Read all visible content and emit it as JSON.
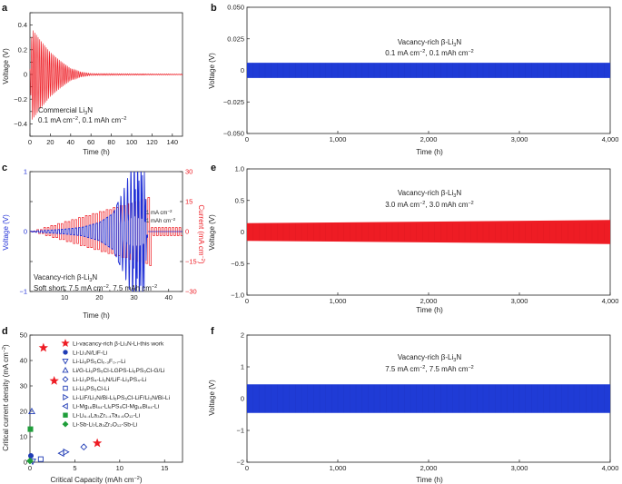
{
  "colors": {
    "red": "#ee1c24",
    "blue": "#1f2fd6",
    "axis": "#222222",
    "green": "#1f9e3a",
    "navy": "#1f3bb5"
  },
  "panels": {
    "a": {
      "label": "a",
      "xlabel": "Time (h)",
      "ylabel": "Voltage (V)",
      "ann_line1": "Commercial Li",
      "ann_line1_sub": "3",
      "ann_line1_end": "N",
      "ann_line2": "0.1 mA cm",
      "ann_line2_sup": "−2",
      "ann_line2_mid": ", 0.1 mAh cm",
      "ann_line2_sup2": "−2"
    },
    "b": {
      "label": "b",
      "xlabel": "Time (h)",
      "ylabel": "Voltage (V)",
      "ann_line1": "Vacancy-rich β-Li",
      "ann_line1_sub": "3",
      "ann_line1_end": "N",
      "ann_line2": "0.1 mA cm",
      "ann_line2_sup": "−2",
      "ann_line2_mid": ", 0.1 mAh cm",
      "ann_line2_sup2": "−2"
    },
    "c": {
      "label": "c",
      "xlabel": "Time (h)",
      "ylabel": "Voltage (V)",
      "ylabel_right": "Current (mA cm",
      "ylabel_right_sup": "−2",
      "ylabel_right_end": ")",
      "ann_line1": "Vacancy-rich β-Li",
      "ann_line1_sub": "3",
      "ann_line1_end": "N",
      "ann_line2": "Soft short: 7.5 mA cm",
      "ann_line2_sup": "−2",
      "ann_line2_mid": ", 7.5 mAh cm",
      "ann_line2_sup2": "−2",
      "small1": "1 mA cm",
      "small1_sup": "−2",
      "small2": "1 mAh cm",
      "small2_sup": "−2"
    },
    "d": {
      "label": "d",
      "xlabel": "Critical Capacity (mAh cm",
      "xlabel_sup": "−2",
      "xlabel_end": ")",
      "ylabel": "Critical current density (mA cm",
      "ylabel_sup": "−2",
      "ylabel_end": ")"
    },
    "e": {
      "label": "e",
      "xlabel": "Time (h)",
      "ylabel": "Voltage (V)",
      "ann_line1": "Vacancy-rich β-Li",
      "ann_line1_sub": "3",
      "ann_line1_end": "N",
      "ann_line2": "3.0 mA cm",
      "ann_line2_sup": "−2",
      "ann_line2_mid": ", 3.0 mAh cm",
      "ann_line2_sup2": "−2"
    },
    "f": {
      "label": "f",
      "xlabel": "Time (h)",
      "ylabel": "Voltage (V)",
      "ann_line1": "Vacancy-rich β-Li",
      "ann_line1_sub": "3",
      "ann_line1_end": "N",
      "ann_line2": "7.5 mA cm",
      "ann_line2_sup": "−2",
      "ann_line2_mid": ", 7.5 mAh cm",
      "ann_line2_sup2": "−2"
    }
  },
  "legend_d": [
    {
      "text": "Li-vacancy-rich β-Li₃N-Li-this work",
      "marker": "star",
      "color": "#ee1c24"
    },
    {
      "text": "Li-Li₃N/LiF-Li",
      "marker": "circle",
      "color": "#1f3bb5"
    },
    {
      "text": "Li-Li₆PS₅Cl₀.₃F₀.₇-Li",
      "marker": "tri-down",
      "color": "#1f3bb5"
    },
    {
      "text": "Li/G-Li₆PS₅Cl-LGPS-Li₆PS₅Cl-G/Li",
      "marker": "tri-up",
      "color": "#1f3bb5"
    },
    {
      "text": "Li-Li₃PS₄-Li₃N/LiF-Li₃PS₄-Li",
      "marker": "diamond",
      "color": "#1f3bb5"
    },
    {
      "text": "Li-Li₆PS₅Cl-Li",
      "marker": "square",
      "color": "#1f3bb5"
    },
    {
      "text": "Li-LiF/Li₃N/Bi-Li₆PS₅Cl-LiF/Li₃N/Bi-Li",
      "marker": "tri-right",
      "color": "#1f3bb5"
    },
    {
      "text": "Li-Mg₁₆Bi₈₄-Li₆PS₅Cl-Mg₁₆Bi₈₄-Li",
      "marker": "tri-left",
      "color": "#1f3bb5"
    },
    {
      "text": "Li-Li₆.₄La₃Zr₁.₄Ta₀.₆O₁₂-Li",
      "marker": "sq-filled",
      "color": "#1f9e3a"
    },
    {
      "text": "Li-Sb-Li₇La₃Zr₂O₁₂-Sb-Li",
      "marker": "diam-filled",
      "color": "#1f9e3a"
    }
  ],
  "chart_data": [
    {
      "panel": "a",
      "type": "line",
      "x_range": [
        0,
        150
      ],
      "ylim": [
        -0.5,
        0.5
      ],
      "xticks": [
        0,
        20,
        40,
        60,
        80,
        100,
        120,
        140
      ],
      "yticks": [
        -0.5,
        -0.4,
        -0.3,
        -0.2,
        -0.1,
        0,
        0.1,
        0.2,
        0.3,
        0.4,
        0.5
      ],
      "ytick_labels": [
        "",
        "−0.4",
        "",
        "−0.2",
        "",
        "0",
        "",
        "0.2",
        "",
        "0.4",
        ""
      ],
      "xtick_labels": [
        "0",
        "20",
        "40",
        "60",
        "80",
        "100",
        "120",
        "140"
      ],
      "envelope": [
        {
          "x": 0,
          "amp": 0.03
        },
        {
          "x": 2,
          "amp": 0.37
        },
        {
          "x": 10,
          "amp": 0.28
        },
        {
          "x": 20,
          "amp": 0.18
        },
        {
          "x": 30,
          "amp": 0.11
        },
        {
          "x": 40,
          "amp": 0.05
        },
        {
          "x": 50,
          "amp": 0.02
        },
        {
          "x": 60,
          "amp": 0.008
        },
        {
          "x": 150,
          "amp": 0.004
        }
      ]
    },
    {
      "panel": "b",
      "type": "line",
      "x_range": [
        0,
        4000
      ],
      "ylim": [
        -0.05,
        0.05
      ],
      "xticks": [
        0,
        1000,
        2000,
        3000,
        4000
      ],
      "xtick_labels": [
        "0",
        "1,000",
        "2,000",
        "3,000",
        "4,000"
      ],
      "yticks": [
        -0.05,
        -0.025,
        0,
        0.025,
        0.05
      ],
      "ytick_labels": [
        "−0.050",
        "−0.025",
        "0",
        "0.025",
        "0.050"
      ],
      "band": {
        "from": 0,
        "to": 4000,
        "amp": 0.006
      }
    },
    {
      "panel": "c",
      "type": "line",
      "x_range": [
        0,
        44
      ],
      "ylim": [
        -1,
        1
      ],
      "y2lim": [
        -30,
        30
      ],
      "xticks": [
        10,
        20,
        30,
        40
      ],
      "xtick_labels": [
        "10",
        "20",
        "30",
        "40"
      ],
      "yticks": [
        -1,
        -0.5,
        0,
        0.5,
        1
      ],
      "ytick_labels": [
        "−1",
        "",
        "0",
        "",
        "1"
      ],
      "y2ticks": [
        -30,
        -15,
        0,
        15,
        30
      ],
      "y2tick_labels": [
        "−30",
        "−15",
        "0",
        "15",
        "30"
      ],
      "voltage_envelope": [
        {
          "x": 0,
          "amp": 0.005
        },
        {
          "x": 5,
          "amp": 0.02
        },
        {
          "x": 10,
          "amp": 0.04
        },
        {
          "x": 15,
          "amp": 0.07
        },
        {
          "x": 20,
          "amp": 0.15
        },
        {
          "x": 24,
          "amp": 0.3
        },
        {
          "x": 27,
          "amp": 0.7
        },
        {
          "x": 30,
          "amp": 1.2
        },
        {
          "x": 33,
          "amp": 1.0
        },
        {
          "x": 34,
          "amp": 0.0
        }
      ],
      "current_steps": [
        0,
        0,
        1,
        1,
        2,
        2,
        3,
        3,
        4,
        4,
        5,
        5,
        6,
        6,
        7,
        7,
        8,
        8,
        9,
        9,
        10,
        10,
        11,
        11,
        12,
        12,
        13,
        13,
        14,
        14,
        15,
        15,
        16,
        16,
        17,
        2,
        2,
        2,
        2,
        2,
        2,
        2,
        2,
        2
      ]
    },
    {
      "panel": "d",
      "type": "scatter",
      "xlim": [
        0,
        17
      ],
      "ylim": [
        0,
        50
      ],
      "xticks": [
        0,
        5,
        10,
        15
      ],
      "xtick_labels": [
        "0",
        "5",
        "10",
        "15"
      ],
      "yticks": [
        0,
        10,
        20,
        30,
        40,
        50
      ],
      "ytick_labels": [
        "0",
        "10",
        "20",
        "30",
        "40",
        "50"
      ],
      "points": [
        {
          "series": 0,
          "x": 1.5,
          "y": 45
        },
        {
          "series": 0,
          "x": 2.7,
          "y": 32
        },
        {
          "series": 0,
          "x": 7.5,
          "y": 7.5
        },
        {
          "series": 1,
          "x": 0.1,
          "y": 2.5
        },
        {
          "series": 2,
          "x": 0.3,
          "y": 0.3
        },
        {
          "series": 3,
          "x": 0.2,
          "y": 20
        },
        {
          "series": 4,
          "x": 6.0,
          "y": 6.0
        },
        {
          "series": 5,
          "x": 1.2,
          "y": 1.2
        },
        {
          "series": 6,
          "x": 4.0,
          "y": 4.0
        },
        {
          "series": 7,
          "x": 3.5,
          "y": 3.5
        },
        {
          "series": 8,
          "x": 0.05,
          "y": 13
        },
        {
          "series": 9,
          "x": 0.0,
          "y": 0.5
        }
      ]
    },
    {
      "panel": "e",
      "type": "line",
      "x_range": [
        0,
        4000
      ],
      "ylim": [
        -1,
        1
      ],
      "xticks": [
        0,
        1000,
        2000,
        3000,
        4000
      ],
      "xtick_labels": [
        "0",
        "1,000",
        "2,000",
        "3,000",
        "4,000"
      ],
      "yticks": [
        -1,
        -0.5,
        0,
        0.5,
        1
      ],
      "ytick_labels": [
        "−1.0",
        "−0.5",
        "0",
        "0.5",
        "1.0"
      ],
      "band": {
        "from": 0,
        "to": 4000,
        "amp_start": 0.14,
        "amp_end": 0.19
      }
    },
    {
      "panel": "f",
      "type": "line",
      "x_range": [
        0,
        4000
      ],
      "ylim": [
        -2,
        2
      ],
      "xticks": [
        0,
        1000,
        2000,
        3000,
        4000
      ],
      "xtick_labels": [
        "0",
        "1,000",
        "2,000",
        "3,000",
        "4,000"
      ],
      "yticks": [
        -2,
        -1,
        0,
        1,
        2
      ],
      "ytick_labels": [
        "−2",
        "−1",
        "0",
        "1",
        "2"
      ],
      "band": {
        "from": 0,
        "to": 4000,
        "amp": 0.45
      }
    }
  ]
}
